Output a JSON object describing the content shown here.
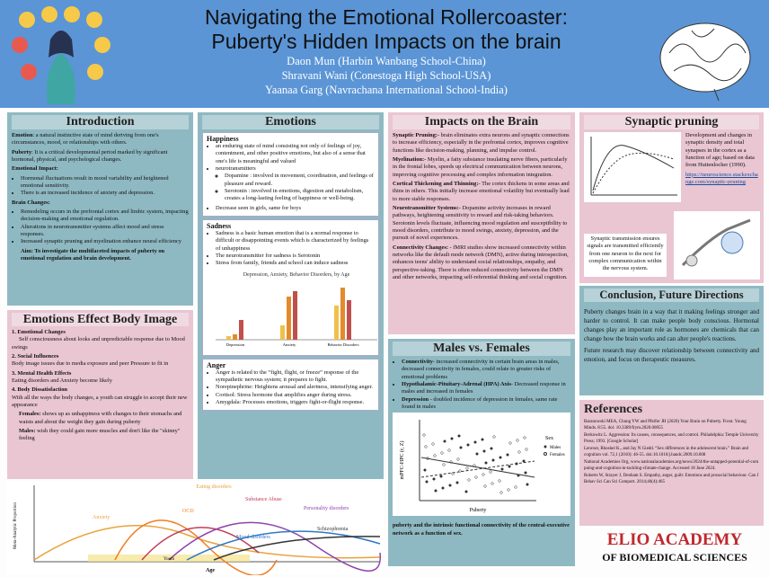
{
  "header": {
    "title_line1": "Navigating the Emotional Rollercoaster:",
    "title_line2": "Puberty's Hidden Impacts on the brain",
    "authors": [
      "Daon Mun (Harbin Wanbang School-China)",
      "Shravani Wani (Conestoga High School-USA)",
      "Yaanaa Garg (Navrachana International School-India)"
    ]
  },
  "introduction": {
    "heading": "Introduction",
    "emotion_term": "Emotion",
    "emotion_text": ": a natural instinctive state of mind deriving from one's circumstances, mood, or relationships with others.",
    "puberty_term": "Puberty",
    "puberty_text": ": It is a critical developmental period marked by significant hormonal, physical, and psychological changes.",
    "impact_heading": "Emotional Impact:",
    "impact_bullets": [
      "Hormonal fluctuations result in mood variability and heightened emotional sensitivity.",
      "There is an increased incidence of anxiety and depression."
    ],
    "brain_heading": "Brain Changes:",
    "brain_bullets": [
      "Remodeling occurs in the prefrontal cortex and limbic system, impacting decision-making and emotional regulation.",
      "Alterations in neurotransmitter systems affect mood and stress responses.",
      "Increased synaptic pruning and myelination enhance neural efficiency"
    ],
    "aim": "Aim: To investigate the multifaceted impacts of puberty on emotional regulation and brain development."
  },
  "body_image": {
    "heading": "Emotions Effect Body Image",
    "items": [
      {
        "title": "1. Emotional Changes",
        "text": "Self consciousness about looks and unpredictable response due to Mood swings"
      },
      {
        "title": "2. Social Influences",
        "text": "Body image issues due to media exposure and peer Pressure to fit in"
      },
      {
        "title": "3. Mental Health Effects",
        "text": "Eating disorders and Anxiety become likely"
      },
      {
        "title": "4. Body Dissatisfaction",
        "text": "With all the ways the body changes, a youth can struggle to accept their new appearance"
      }
    ],
    "females_term": "Females:",
    "females_text": " shows up as unhappiness with changes to their stomachs and waists and about the weight they gain during puberty",
    "males_term": "Males:",
    "males_text": " wish they could gain more muscles and don't like the \"skinny\" feeling"
  },
  "age_figure": {
    "y_label": "Meta-Analytic Proportion",
    "x_label": "Age",
    "youth": "Youth",
    "curve_labels": [
      "Eating disorders",
      "Anxiety",
      "OCD",
      "Substance Abuse",
      "Personality disorders",
      "Mood disorders",
      "Schizophrenia"
    ]
  },
  "emotions": {
    "heading": "Emotions",
    "happiness_heading": "Happiness",
    "happiness_bullets": [
      "an enduring state of mind consisting not only of feelings of joy, contentment, and other positive emotions, but also of a sense that one's life is meaningful and valued",
      "neurotransmitters"
    ],
    "neuro_sub": [
      "Dopamine : involved in movement, coordination, and feelings of pleasure and reward.",
      "Serotonin : involved in emotions, digestion and metabolism, creates a long-lasting feeling of happiness or well-being."
    ],
    "happiness_last": "Decrease seen in girls, same for boys",
    "sadness_heading": "Sadness",
    "sadness_bullets": [
      "Sadness is a basic human emotion that is a normal response to difficult or disappointing events which is characterized by feelings of unhappiness",
      "The neurotransmitter for sadness is Serotonin",
      "Stress from family, friends and school can induce sadness"
    ],
    "sadness_chart_title": "Depression, Anxiety, Behavior Disorders, by Age",
    "sadness_chart_groups": [
      "Depression",
      "Anxiety",
      "Behavior Disorders"
    ],
    "anger_heading": "Anger",
    "anger_bullets": [
      "Anger is related to the “fight, flight, or freeze” response of the sympathetic nervous system; it prepares to fight.",
      "Norepinephrine: Heightens arousal and alertness, intensifying anger.",
      "Cortisol: Stress hormone that amplifies anger during stress.",
      "Amygdala: Processes emotions, triggers fight-or-flight response."
    ]
  },
  "brain": {
    "heading": "Impacts on the Brain",
    "paragraphs": [
      {
        "term": "Synaptic Pruning:-",
        "text": " brain eliminates extra neurons and synaptic connections to increase efficiency, especially in the prefrontal cortex, improves cognitive functions like decision-making, planning, and impulse control."
      },
      {
        "term": "Myelination:-",
        "text": " Myelin, a fatty substance insulating nerve fibers, particularly in the frontal lobes, speeds up electrical communication between neurons, improving cognitive processing and complex information integration."
      },
      {
        "term": "Cortical Thickening and Thinning:-",
        "text": " The cortex thickens in some areas and thins in others. This initially increase emotional volatility but eventually lead to more stable responses."
      },
      {
        "term": "Neurotransmitter Systems:-",
        "text": " Dopamine activity increases in reward pathways, heightening sensitivity to reward and risk-taking behaviors. Serotonin levels fluctuate, influencing mood regulation and susceptibility to mood disorders, contribute to mood swings, anxiety, depression, and the pursuit of novel experiences."
      },
      {
        "term": "Connectivity Changes:",
        "text": " - fMRI studies show increased connectivity within networks like the default mode network (DMN), active during introspection, enhances teens' ability to understand social relationships, empathy, and perspective-taking. There is often reduced connectivity between the DMN and other networks, impacting self-referential thinking and social cognition."
      }
    ]
  },
  "males_females": {
    "heading": "Males vs. Females",
    "bullets": [
      {
        "term": "Connectivity",
        "text": "- increased connectivity in certain brain areas in males, decreased connectivity in females, could relate to greater risks of emotional problems"
      },
      {
        "term": "Hypothalamic-Pituitary-Adrenal (HPA) Axis",
        "text": "- Decreased response in males and increased in females"
      },
      {
        "term": "Depression",
        "text": " - doubled incidence of depression in females, same rate found in males"
      }
    ],
    "plot_x_label": "Puberty",
    "plot_y_label": "mPFC-HPC (r, Z)",
    "plot_legend_title": "Sex",
    "plot_legend": [
      "Males",
      "Females"
    ],
    "caption": "puberty and the intrinsic functional connectivity of the central-executive network as a function of sex."
  },
  "synaptic": {
    "heading": "Synaptic pruning",
    "fig1_text": "Development and changes in synaptic density and total synapses in the cortex as a function of age; based on data from Huttenlocher (1990).",
    "fig1_link": "https://neuroscience.stackexchange.com/synaptic-pruning",
    "fig2_text": "Synaptic transmission ensures signals are transmitted efficiently from one neuron to the next for complex communication within the nervous system."
  },
  "conclusion": {
    "heading": "Conclusion, Future Directions",
    "text": "Puberty changes brain in a way that it making feelings stronger and harder to control. It can make people body conscious. Hormonal changes play an important role as hormones are chemicals that can change how the brain works and can alter people's reactions.",
    "future": "Future research may discover relationship between connectivity and emotion, and focus on therapeutic measures."
  },
  "references": {
    "heading": "References",
    "items": [
      "Baranowski MEA, Chung YW and Pfeifer JH (2020) Your Brain on Puberty. Front. Young Minds. 8:55. doi: 10.3389/frym.2020.00055",
      "Berkowitz L. Aggression: Its causes, consequences, and control. Philadelphia: Temple University Press; 1993. [Google Scholar]",
      "Lenroot, Rhoshel K., and Jay N Giedd. “Sex differences in the adolescent brain.” Brain and cognition vol. 72,1 (2010): 46-55. doi:10.1016/j.bandc.2009.10.008",
      "National Academies Org, www.nationalacademies.org/news/2024/the-untapped-potential-of-compuing-and-cognition-in-tackling-climate-change. Accessed 18 June 2024.",
      "Roberts W, Strayer J, Denham S. Empathy, anger, guilt: Emotions and prosocial behaviour. Can J Behav Sci Can Sci Comport. 2014;46(4):465"
    ]
  },
  "logo": {
    "line1": "ELIO ACADEMY",
    "line2": "OF BIOMEDICAL SCIENCES"
  }
}
